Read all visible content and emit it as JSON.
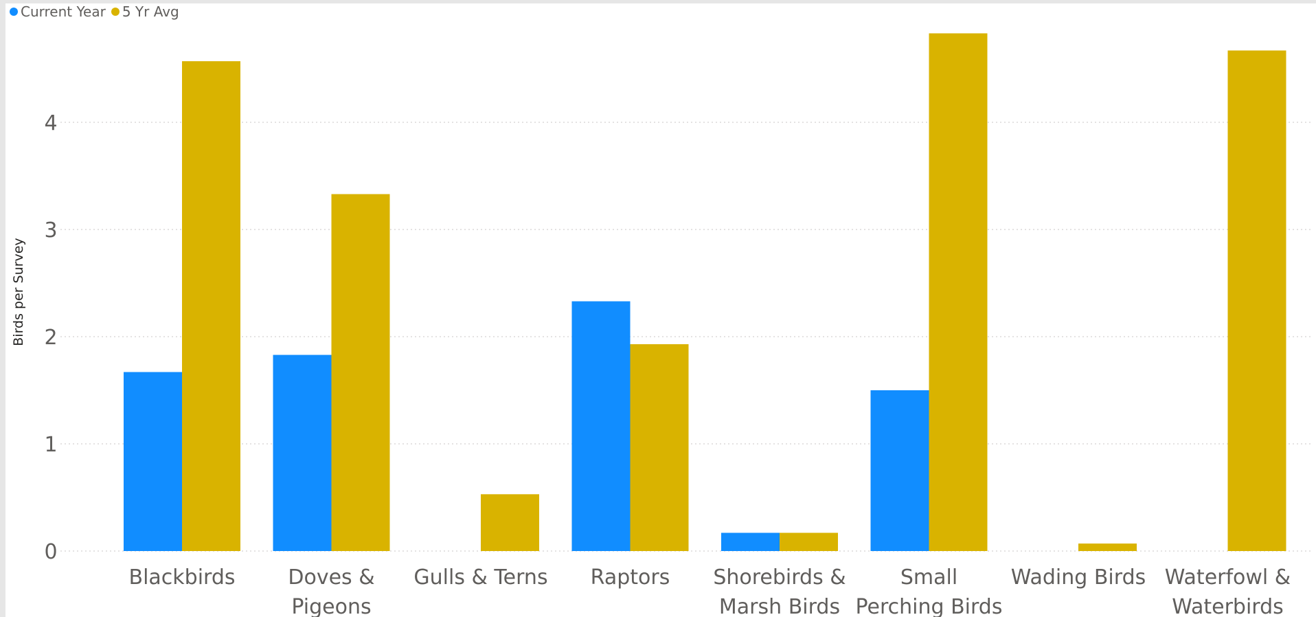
{
  "colors": {
    "current_year": "#118dff",
    "five_yr_avg": "#d9b300",
    "text": "#605e5c",
    "axis_title": "#252423",
    "grid": "#c8c6c4"
  },
  "legend": {
    "items": [
      {
        "label": "Current Year",
        "color": "#118dff"
      },
      {
        "label": "5 Yr Avg",
        "color": "#d9b300"
      }
    ],
    "placement": "top-left"
  },
  "chart_data": {
    "type": "bar",
    "title": "",
    "xlabel": "",
    "ylabel": "Birds per Survey",
    "ylim": [
      0,
      4.85
    ],
    "yticks": [
      0,
      1,
      2,
      3,
      4
    ],
    "grid": true,
    "categories": [
      [
        "Blackbirds"
      ],
      [
        "Doves &",
        "Pigeons"
      ],
      [
        "Gulls & Terns"
      ],
      [
        "Raptors"
      ],
      [
        "Shorebirds &",
        "Marsh Birds"
      ],
      [
        "Small",
        "Perching Birds"
      ],
      [
        "Wading Birds"
      ],
      [
        "Waterfowl &",
        "Waterbirds"
      ]
    ],
    "series": [
      {
        "name": "Current Year",
        "color": "#118dff",
        "values": [
          1.67,
          1.83,
          0,
          2.33,
          0.17,
          1.5,
          0,
          0
        ]
      },
      {
        "name": "5 Yr Avg",
        "color": "#d9b300",
        "values": [
          4.57,
          3.33,
          0.53,
          1.93,
          0.17,
          4.83,
          0.07,
          4.67
        ]
      }
    ]
  }
}
